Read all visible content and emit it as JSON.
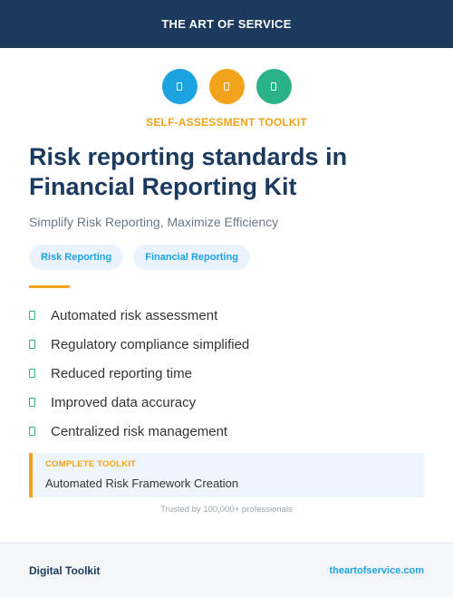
{
  "header": {
    "brand": "THE ART OF SERVICE"
  },
  "icons": [
    {
      "name": "document-icon",
      "color": "#1aa3df"
    },
    {
      "name": "document-icon",
      "color": "#f2a21b"
    },
    {
      "name": "document-icon",
      "color": "#2bb288"
    }
  ],
  "hero": {
    "eyebrow": "SELF-ASSESSMENT TOOLKIT",
    "title": "Risk reporting standards in Financial Reporting Kit",
    "subtitle": "Simplify Risk Reporting, Maximize Efficiency",
    "tags": [
      "Risk Reporting",
      "Financial Reporting"
    ]
  },
  "features": [
    "Automated risk assessment",
    "Regulatory compliance simplified",
    "Reduced reporting time",
    "Improved data accuracy",
    "Centralized risk management"
  ],
  "callout": {
    "eyebrow": "COMPLETE TOOLKIT",
    "text": "Automated Risk Framework Creation"
  },
  "trust": "Trusted by 100,000+ professionals",
  "footer": {
    "left": "Digital Toolkit",
    "right": "theartofservice.com"
  },
  "colors": {
    "navy": "#1c3a5e",
    "accent_orange": "#f2a21b",
    "accent_blue": "#1aa3df",
    "accent_green": "#2bb288",
    "text_dark": "#333333",
    "text_muted": "#6b7785",
    "text_light": "#9aa3ad"
  }
}
